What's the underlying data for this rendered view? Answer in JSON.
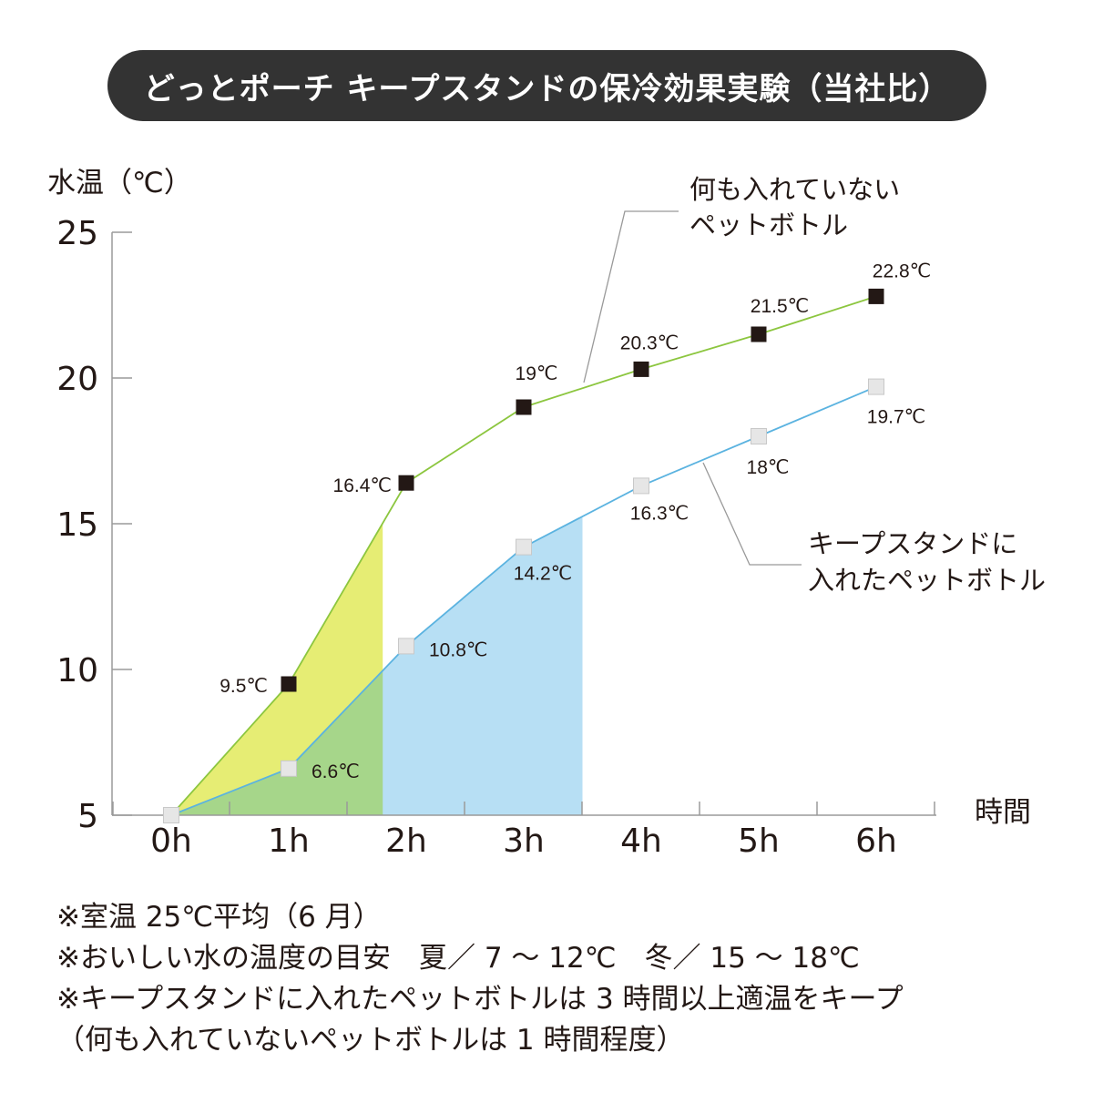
{
  "title": "どっとポーチ キープスタンドの保冷効果実験（当社比）",
  "chart_data": {
    "type": "line",
    "ylabel": "水温（℃）",
    "xlabel": "時間",
    "categories": [
      "0h",
      "1h",
      "2h",
      "3h",
      "4h",
      "5h",
      "6h"
    ],
    "yticks": [
      "5",
      "10",
      "15",
      "20",
      "25"
    ],
    "ylim": [
      5,
      25
    ],
    "series": [
      {
        "name": "何も入れていないペットボトル",
        "name_lines": [
          "何も入れていない",
          "ペットボトル"
        ],
        "values": [
          5,
          9.5,
          16.4,
          19,
          20.3,
          21.5,
          22.8
        ],
        "labels": [
          "",
          "9.5℃",
          "16.4℃",
          "19℃",
          "20.3℃",
          "21.5℃",
          "22.8℃"
        ],
        "line_color": "#8cc63f",
        "marker_fill": "#231815",
        "fill_color": "#e6ed74",
        "fill_until_hours": 1.8
      },
      {
        "name": "キープスタンドに入れたペットボトル",
        "name_lines": [
          "キープスタンドに",
          "入れたペットボトル"
        ],
        "values": [
          5,
          6.6,
          10.8,
          14.2,
          16.3,
          18,
          19.7
        ],
        "labels": [
          "",
          "6.6℃",
          "10.8℃",
          "14.2℃",
          "16.3℃",
          "18℃",
          "19.7℃"
        ],
        "line_color": "#5bb3e0",
        "marker_fill": "#e6e6e6",
        "fill_color": "#b7dff4",
        "fill_until_hours": 3.5
      }
    ],
    "overlap_fill_color": "#a6d68a",
    "grid": false,
    "legend": "annotations"
  },
  "notes": [
    "※室温 25℃平均（6 月）",
    "※おいしい水の温度の目安　夏／ 7 〜 12℃　冬／ 15 〜 18℃",
    "※キープスタンドに入れたペットボトルは 3 時間以上適温をキープ",
    "（何も入れていないペットボトルは 1 時間程度）"
  ]
}
